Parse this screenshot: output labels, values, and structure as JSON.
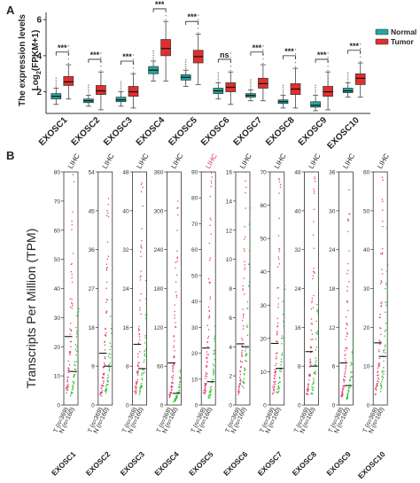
{
  "panels": {
    "a_label": "A",
    "b_label": "B"
  },
  "colors": {
    "normal_box": "#1fa8a0",
    "tumor_box": "#e0302e",
    "tumor_dots": "#e8407a",
    "normal_dots": "#25c425",
    "lihc_highlight": "#e0308c",
    "axis": "#333333"
  },
  "chart_data": [
    {
      "type": "box",
      "panel": "A",
      "ylabel_line1": "The expression levels",
      "ylabel_line2": "Log",
      "ylabel_sub": "2",
      "ylabel_tail": "(FPKM+1)",
      "ylim": [
        0.8,
        6.4
      ],
      "yticks": [
        "2",
        "4",
        "6"
      ],
      "legend": {
        "placement": "top-right",
        "normal": "Normal",
        "tumor": "Tumor"
      },
      "categories": [
        "EXOSC1",
        "EXOSC2",
        "EXOSC3",
        "EXOSC4",
        "EXOSC5",
        "EXOSC6",
        "EXOSC7",
        "EXOSC8",
        "EXOSC9",
        "EXOSC10"
      ],
      "significance": [
        "***",
        "***",
        "***",
        "***",
        "***",
        "ns",
        "***",
        "***",
        "***",
        "***"
      ],
      "series": [
        {
          "name": "Normal",
          "boxes": [
            {
              "min": 1.3,
              "q1": 1.6,
              "median": 1.75,
              "q3": 1.9,
              "max": 2.2
            },
            {
              "min": 1.2,
              "q1": 1.4,
              "median": 1.5,
              "q3": 1.6,
              "max": 1.8
            },
            {
              "min": 1.2,
              "q1": 1.45,
              "median": 1.55,
              "q3": 1.7,
              "max": 2.0
            },
            {
              "min": 2.6,
              "q1": 3.0,
              "median": 3.2,
              "q3": 3.4,
              "max": 3.7
            },
            {
              "min": 2.3,
              "q1": 2.65,
              "median": 2.8,
              "q3": 2.95,
              "max": 3.2
            },
            {
              "min": 1.6,
              "q1": 1.9,
              "median": 2.05,
              "q3": 2.2,
              "max": 2.5
            },
            {
              "min": 1.5,
              "q1": 1.7,
              "median": 1.8,
              "q3": 1.9,
              "max": 2.1
            },
            {
              "min": 1.1,
              "q1": 1.35,
              "median": 1.45,
              "q3": 1.55,
              "max": 1.8
            },
            {
              "min": 0.95,
              "q1": 1.15,
              "median": 1.25,
              "q3": 1.45,
              "max": 1.8
            },
            {
              "min": 1.7,
              "q1": 1.95,
              "median": 2.05,
              "q3": 2.2,
              "max": 2.5
            }
          ]
        },
        {
          "name": "Tumor",
          "boxes": [
            {
              "min": 1.6,
              "q1": 2.35,
              "median": 2.55,
              "q3": 2.85,
              "max": 3.5
            },
            {
              "min": 1.0,
              "q1": 1.85,
              "median": 2.05,
              "q3": 2.35,
              "max": 3.1
            },
            {
              "min": 1.1,
              "q1": 1.75,
              "median": 2.0,
              "q3": 2.3,
              "max": 3.0
            },
            {
              "min": 2.6,
              "q1": 4.0,
              "median": 4.4,
              "q3": 4.9,
              "max": 5.9
            },
            {
              "min": 2.4,
              "q1": 3.6,
              "median": 3.95,
              "q3": 4.3,
              "max": 5.2
            },
            {
              "min": 1.3,
              "q1": 2.0,
              "median": 2.25,
              "q3": 2.5,
              "max": 3.1
            },
            {
              "min": 1.5,
              "q1": 2.2,
              "median": 2.45,
              "q3": 2.75,
              "max": 3.5
            },
            {
              "min": 1.1,
              "q1": 1.85,
              "median": 2.15,
              "q3": 2.45,
              "max": 3.3
            },
            {
              "min": 1.0,
              "q1": 1.75,
              "median": 2.0,
              "q3": 2.3,
              "max": 3.1
            },
            {
              "min": 1.7,
              "q1": 2.4,
              "median": 2.75,
              "q3": 3.0,
              "max": 3.6
            }
          ]
        }
      ]
    },
    {
      "type": "scatter",
      "panel": "B",
      "ylabel": "Transcripts Per Million (TPM)",
      "subplots": [
        {
          "gene": "EXOSC1",
          "cancer": "LIHC",
          "highlight": false,
          "ymax": 80,
          "yticks": [
            "0",
            "10",
            "20",
            "30",
            "40",
            "50",
            "60",
            "70",
            "80"
          ],
          "tumor_median": 23.5,
          "normal_median": 11.5,
          "tumor_n": "(n=369)",
          "normal_n": "(n=160)"
        },
        {
          "gene": "EXOSC2",
          "cancer": "LIHC",
          "highlight": false,
          "ymax": 54,
          "yticks": [
            "0",
            "9",
            "18",
            "27",
            "36",
            "45",
            "54"
          ],
          "tumor_median": 12.0,
          "normal_median": 9.0,
          "tumor_n": "(n=369)",
          "normal_n": "(n=160)"
        },
        {
          "gene": "EXOSC3",
          "cancer": "LIHC",
          "highlight": false,
          "ymax": 48,
          "yticks": [
            "0",
            "8",
            "16",
            "24",
            "32",
            "40",
            "48"
          ],
          "tumor_median": 12.5,
          "normal_median": 7.5,
          "tumor_n": "(n=369)",
          "normal_n": "(n=160)"
        },
        {
          "gene": "EXOSC4",
          "cancer": "LIHC",
          "highlight": false,
          "ymax": 360,
          "yticks": [
            "0",
            "60",
            "120",
            "180",
            "240",
            "300",
            "360"
          ],
          "tumor_median": 65.0,
          "normal_median": 18.0,
          "tumor_n": "(n=369)",
          "normal_n": "(n=160)"
        },
        {
          "gene": "EXOSC5",
          "cancer": "LIHC",
          "highlight": true,
          "ymax": 90,
          "yticks": [
            "0",
            "10",
            "20",
            "30",
            "40",
            "50",
            "60",
            "70",
            "80",
            "90"
          ],
          "tumor_median": 22.0,
          "normal_median": 9.0,
          "tumor_n": "(n=369)",
          "normal_n": "(n=160)"
        },
        {
          "gene": "EXOSC6",
          "cancer": "LIHC",
          "highlight": false,
          "ymax": 16,
          "yticks": [
            "0",
            "2",
            "4",
            "6",
            "8",
            "10",
            "12",
            "14",
            "16"
          ],
          "tumor_median": 4.2,
          "normal_median": 4.0,
          "tumor_n": "(n=369)",
          "normal_n": "(n=160)"
        },
        {
          "gene": "EXOSC7",
          "cancer": "LIHC",
          "highlight": false,
          "ymax": 70,
          "yticks": [
            "0",
            "10",
            "20",
            "30",
            "40",
            "50",
            "60",
            "70"
          ],
          "tumor_median": 18.5,
          "normal_median": 11.0,
          "tumor_n": "(n=369)",
          "normal_n": "(n=160)"
        },
        {
          "gene": "EXOSC8",
          "cancer": "LIHC",
          "highlight": false,
          "ymax": 48,
          "yticks": [
            "0",
            "8",
            "16",
            "24",
            "32",
            "40",
            "48"
          ],
          "tumor_median": 11.0,
          "normal_median": 8.0,
          "tumor_n": "(n=369)",
          "normal_n": "(n=160)"
        },
        {
          "gene": "EXOSC9",
          "cancer": "LIHC",
          "highlight": false,
          "ymax": 36,
          "yticks": [
            "0",
            "6",
            "12",
            "18",
            "24",
            "30",
            "36"
          ],
          "tumor_median": 6.5,
          "normal_median": 3.0,
          "tumor_n": "(n=369)",
          "normal_n": "(n=160)"
        },
        {
          "gene": "EXOSC10",
          "cancer": "LIHC",
          "highlight": false,
          "ymax": 60,
          "yticks": [
            "0",
            "10",
            "20",
            "30",
            "40",
            "50",
            "60"
          ],
          "tumor_median": 16.0,
          "normal_median": 12.5,
          "tumor_n": "(n=369)",
          "normal_n": "(n=160)"
        }
      ],
      "x_letters": {
        "tumor": "T",
        "normal": "N"
      }
    }
  ]
}
